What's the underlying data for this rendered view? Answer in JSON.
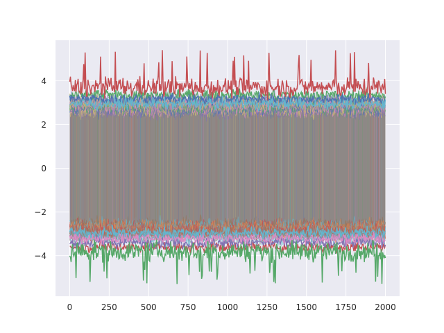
{
  "chart_data": {
    "type": "line",
    "title": "",
    "xlabel": "",
    "ylabel": "",
    "xlim": [
      -90,
      2090
    ],
    "ylim": [
      -5.85,
      5.85
    ],
    "grid": true,
    "legend": "none",
    "x_ticks": [
      {
        "value": 0,
        "label": "0"
      },
      {
        "value": 250,
        "label": "250"
      },
      {
        "value": 500,
        "label": "500"
      },
      {
        "value": 750,
        "label": "750"
      },
      {
        "value": 1000,
        "label": "1000"
      },
      {
        "value": 1250,
        "label": "1250"
      },
      {
        "value": 1500,
        "label": "1500"
      },
      {
        "value": 1750,
        "label": "1750"
      },
      {
        "value": 2000,
        "label": "2000"
      }
    ],
    "y_ticks": [
      {
        "value": -4,
        "label": "−4"
      },
      {
        "value": -2,
        "label": "−2"
      },
      {
        "value": 0,
        "label": "0"
      },
      {
        "value": 2,
        "label": "2"
      },
      {
        "value": 4,
        "label": "4"
      }
    ],
    "x_range": [
      0,
      2000
    ],
    "series_count": 1000,
    "series_description": "Many overlapping noisy series spanning x 0–2000; values mostly within about −3 to 3, extremes near 5.4 and −5.3.",
    "colors": {
      "background": "#eaeaf2",
      "grid": "#ffffff",
      "palette": [
        "#4c72b0",
        "#dd8452",
        "#55a868",
        "#c44e52",
        "#8172b3",
        "#937860",
        "#da8bc3",
        "#8c8c8c",
        "#ccb974",
        "#64b5cd"
      ],
      "body_fill": "#8e8886"
    },
    "envelope": {
      "upper_band": {
        "color": "#c44e52",
        "base": 3.7,
        "spread": 0.45,
        "spike_max": 5.4
      },
      "lower_band": {
        "color": "#55a868",
        "base": -3.8,
        "spread": 0.45,
        "spike_min": -5.3
      },
      "mid_bands": [
        {
          "color": "#55a868",
          "center": 3.35
        },
        {
          "color": "#4c72b0",
          "center": 3.15
        },
        {
          "color": "#64b5cd",
          "center": 2.95
        },
        {
          "color": "#c44e52",
          "center": -3.6
        },
        {
          "color": "#8172b3",
          "center": -3.4
        },
        {
          "color": "#da8bc3",
          "center": -3.2
        },
        {
          "color": "#64b5cd",
          "center": -2.95
        }
      ]
    }
  }
}
